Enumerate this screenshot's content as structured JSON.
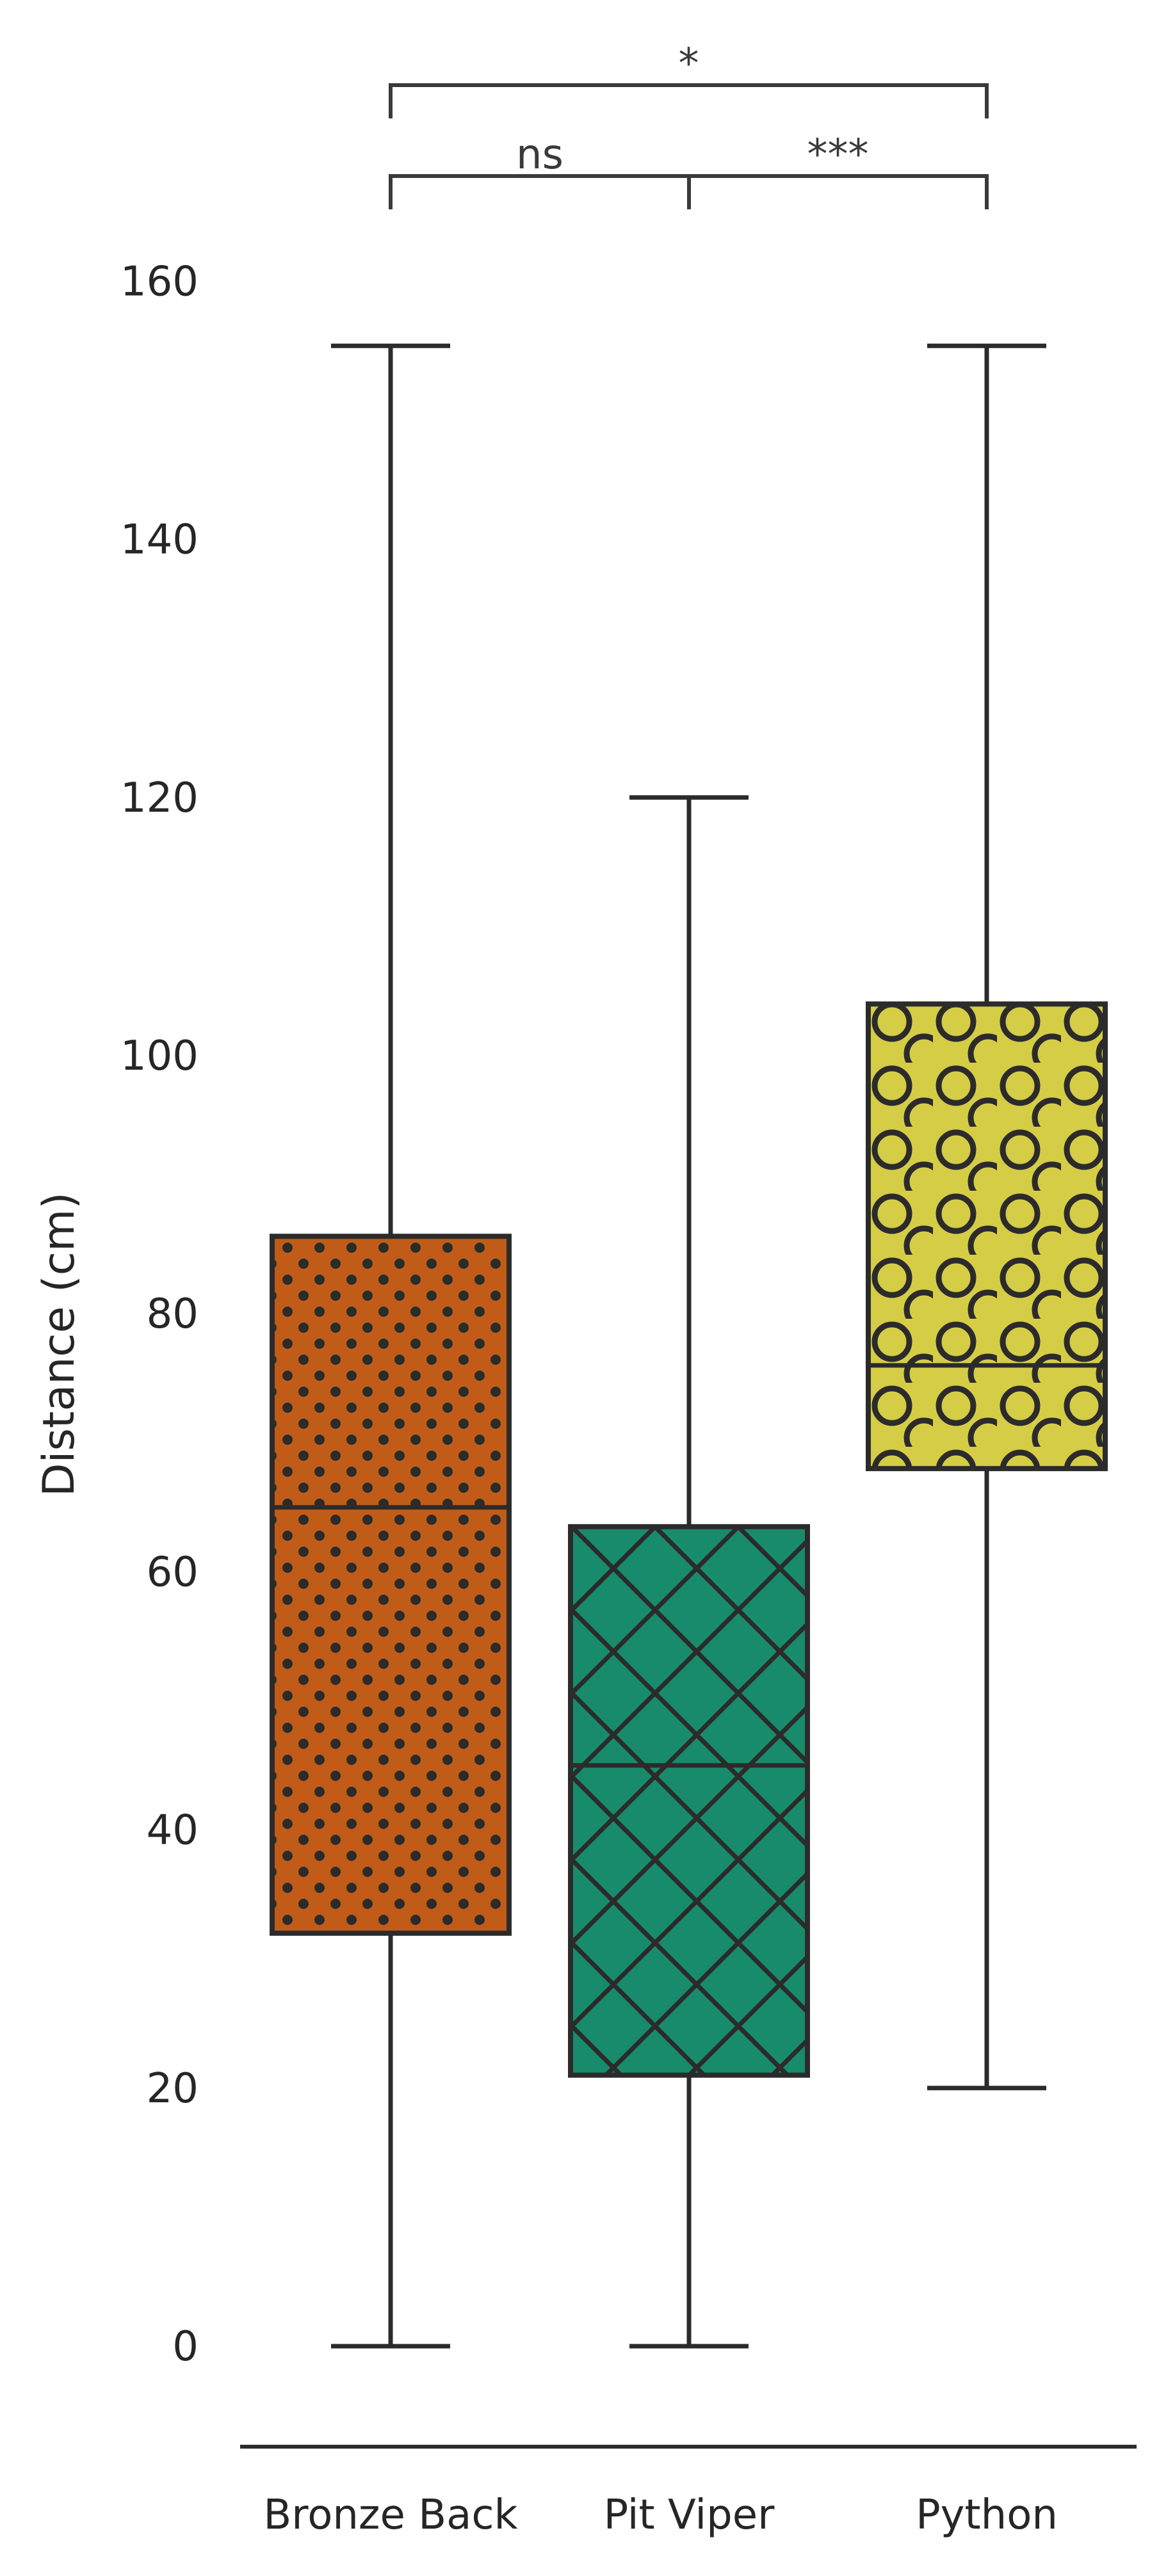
{
  "chart_data": {
    "type": "box",
    "title": "",
    "xlabel": "",
    "ylabel": "Distance (cm)",
    "ylim": [
      -8,
      160
    ],
    "yticks": [
      "0",
      "20",
      "40",
      "60",
      "80",
      "100",
      "120",
      "140",
      "160"
    ],
    "grid": false,
    "categories": [
      "Bronze Back",
      "Pit Viper",
      "Python"
    ],
    "boxes": [
      {
        "category": "Bronze Back",
        "whisker_low": 0,
        "q1": 32,
        "median": 65,
        "q3": 86,
        "whisker_high": 155,
        "color": "#c05c17",
        "hatch": "dots"
      },
      {
        "category": "Pit Viper",
        "whisker_low": 0,
        "q1": 21,
        "median": 45,
        "q3": 63.5,
        "whisker_high": 120,
        "color": "#178b6b",
        "hatch": "crosshatch"
      },
      {
        "category": "Python",
        "whisker_low": 20,
        "q1": 68,
        "median": 76,
        "q3": 104,
        "whisker_high": 155,
        "color": "#d4cd45",
        "hatch": "circles"
      }
    ],
    "significance": [
      {
        "from": "Bronze Back",
        "to": "Pit Viper",
        "label": "ns"
      },
      {
        "from": "Pit Viper",
        "to": "Python",
        "label": "***"
      },
      {
        "from": "Bronze Back",
        "to": "Python",
        "label": "*"
      }
    ]
  },
  "colors": {
    "line": "#2b2b2b",
    "text": "#262626"
  }
}
